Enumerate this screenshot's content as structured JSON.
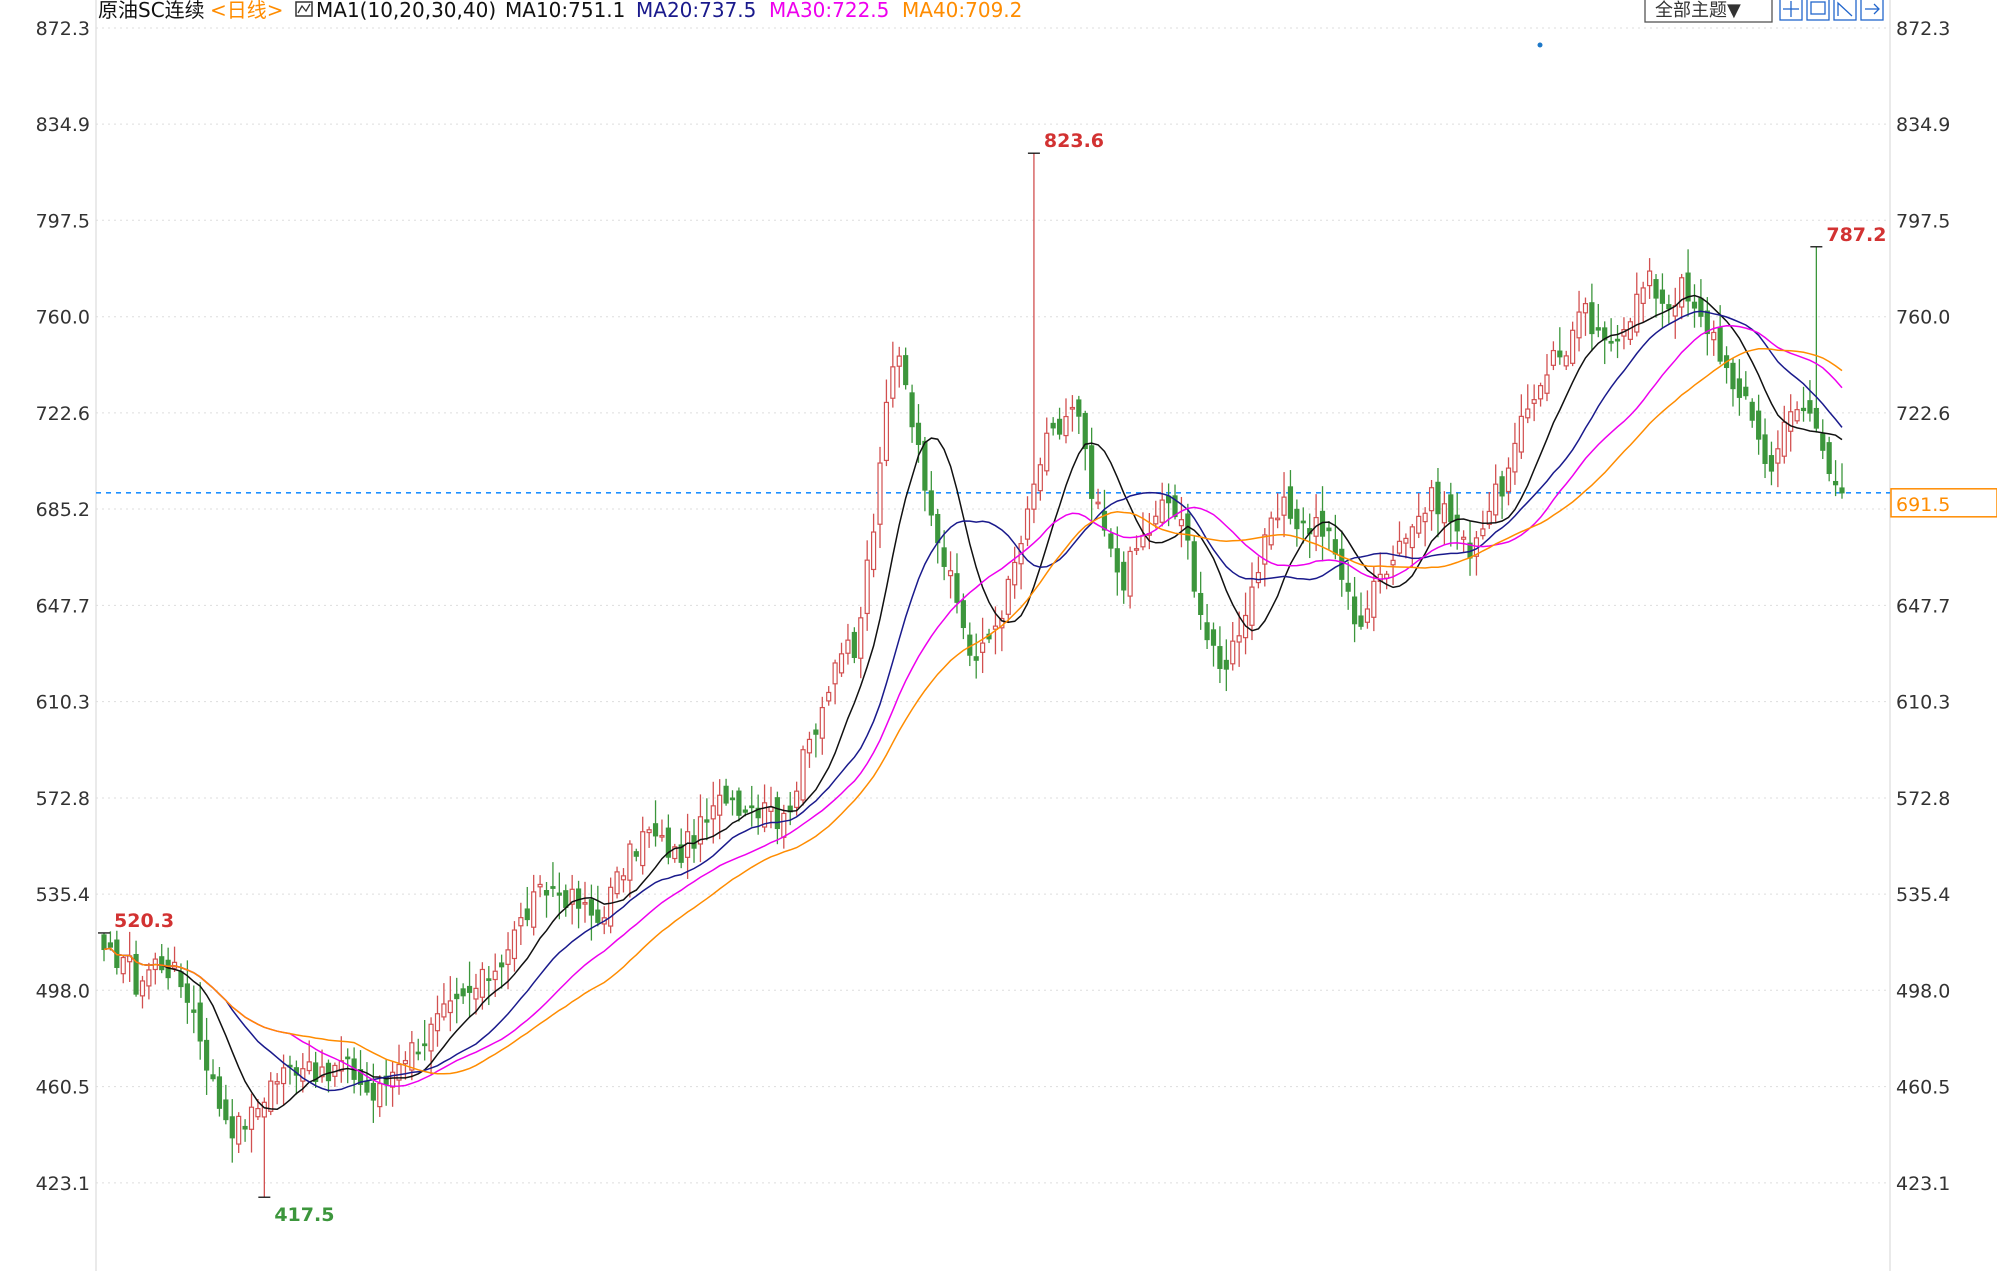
{
  "chart_data": {
    "type": "candlestick",
    "title": "原油SC连续",
    "period_label": "<日线>",
    "indicator_label": "MA1(10,20,30,40)",
    "theme_button": "全部主题▼",
    "ma_labels": {
      "ma10": "MA10:751.1",
      "ma20": "MA20:737.5",
      "ma30": "MA30:722.5",
      "ma40": "MA40:709.2"
    },
    "ylim": [
      404.7,
      872.3
    ],
    "yticks": [
      "872.3",
      "834.9",
      "797.5",
      "760.0",
      "722.6",
      "685.2",
      "647.7",
      "610.3",
      "572.8",
      "535.4",
      "498.0",
      "460.5",
      "423.1"
    ],
    "current_price": "691.5",
    "current_price_value": 691.5,
    "annotations": [
      {
        "text": "520.3",
        "value": 520.3,
        "index": 0,
        "kind": "high"
      },
      {
        "text": "417.5",
        "value": 417.5,
        "index": 25,
        "kind": "low"
      },
      {
        "text": "823.6",
        "value": 823.6,
        "index": 145,
        "kind": "high"
      },
      {
        "text": "787.2",
        "value": 787.2,
        "index": 267,
        "kind": "high"
      }
    ],
    "colors": {
      "up": "#d25050",
      "down": "#3c963c",
      "ma10": "#111111",
      "ma20": "#1a1a8c",
      "ma30": "#ee00ee",
      "ma40": "#ff8c00",
      "grid": "#dddddd",
      "price_line": "#1e90ff",
      "high_text": "#d23232",
      "low_text": "#3c963c",
      "legend_title": "#111111",
      "legend_period": "#ff8c00",
      "legend_ma10": "#111111",
      "legend_ma20": "#1a1a8c",
      "legend_ma30": "#ee00ee",
      "legend_ma40": "#ff8c00"
    },
    "candle_count": 272,
    "close_knots": [
      [
        0,
        510
      ],
      [
        4,
        512
      ],
      [
        6,
        500
      ],
      [
        10,
        510
      ],
      [
        13,
        505
      ],
      [
        16,
        495
      ],
      [
        18,
        480
      ],
      [
        21,
        456
      ],
      [
        24,
        445
      ],
      [
        25,
        445
      ],
      [
        28,
        450
      ],
      [
        31,
        462
      ],
      [
        35,
        468
      ],
      [
        38,
        472
      ],
      [
        41,
        462
      ],
      [
        44,
        470
      ],
      [
        47,
        465
      ],
      [
        50,
        456
      ],
      [
        52,
        460
      ],
      [
        55,
        472
      ],
      [
        57,
        475
      ],
      [
        60,
        480
      ],
      [
        63,
        488
      ],
      [
        66,
        492
      ],
      [
        70,
        500
      ],
      [
        74,
        510
      ],
      [
        77,
        522
      ],
      [
        80,
        532
      ],
      [
        83,
        538
      ],
      [
        86,
        535
      ],
      [
        89,
        530
      ],
      [
        92,
        525
      ],
      [
        95,
        538
      ],
      [
        98,
        550
      ],
      [
        101,
        560
      ],
      [
        104,
        555
      ],
      [
        107,
        550
      ],
      [
        110,
        558
      ],
      [
        113,
        565
      ],
      [
        116,
        575
      ],
      [
        119,
        570
      ],
      [
        122,
        570
      ],
      [
        124,
        575
      ],
      [
        126,
        560
      ],
      [
        128,
        572
      ],
      [
        130,
        585
      ],
      [
        132,
        598
      ],
      [
        134,
        610
      ],
      [
        136,
        625
      ],
      [
        138,
        632
      ],
      [
        140,
        625
      ],
      [
        142,
        660
      ],
      [
        144,
        685
      ],
      [
        146,
        728
      ],
      [
        148,
        750
      ],
      [
        150,
        730
      ],
      [
        152,
        705
      ],
      [
        154,
        690
      ],
      [
        156,
        670
      ],
      [
        158,
        655
      ],
      [
        160,
        642
      ],
      [
        162,
        625
      ],
      [
        164,
        630
      ],
      [
        166,
        640
      ],
      [
        168,
        650
      ],
      [
        170,
        665
      ],
      [
        172,
        680
      ],
      [
        174,
        700
      ],
      [
        176,
        712
      ],
      [
        178,
        715
      ],
      [
        180,
        725
      ],
      [
        182,
        718
      ],
      [
        184,
        690
      ],
      [
        186,
        680
      ],
      [
        188,
        665
      ],
      [
        190,
        658
      ],
      [
        192,
        668
      ],
      [
        194,
        675
      ],
      [
        196,
        680
      ],
      [
        198,
        690
      ],
      [
        200,
        682
      ],
      [
        202,
        672
      ],
      [
        204,
        650
      ],
      [
        206,
        632
      ],
      [
        208,
        622
      ],
      [
        210,
        630
      ],
      [
        212,
        642
      ],
      [
        214,
        655
      ],
      [
        216,
        668
      ],
      [
        218,
        680
      ],
      [
        220,
        685
      ],
      [
        222,
        682
      ],
      [
        224,
        678
      ],
      [
        226,
        680
      ],
      [
        228,
        675
      ],
      [
        230,
        665
      ],
      [
        232,
        650
      ],
      [
        234,
        640
      ],
      [
        236,
        650
      ],
      [
        238,
        660
      ],
      [
        240,
        668
      ],
      [
        242,
        675
      ],
      [
        244,
        680
      ],
      [
        246,
        685
      ],
      [
        248,
        690
      ],
      [
        250,
        685
      ],
      [
        252,
        678
      ],
      [
        254,
        668
      ],
      [
        256,
        676
      ],
      [
        258,
        685
      ],
      [
        260,
        692
      ],
      [
        262,
        700
      ],
      [
        264,
        715
      ],
      [
        266,
        728
      ],
      [
        268,
        736
      ],
      [
        270,
        745
      ],
      [
        272,
        745
      ],
      [
        274,
        755
      ],
      [
        276,
        762
      ],
      [
        278,
        752
      ],
      [
        280,
        748
      ],
      [
        282,
        755
      ],
      [
        284,
        760
      ],
      [
        286,
        768
      ],
      [
        288,
        774
      ],
      [
        290,
        768
      ],
      [
        292,
        765
      ],
      [
        294,
        772
      ],
      [
        296,
        762
      ],
      [
        298,
        758
      ],
      [
        300,
        754
      ],
      [
        302,
        743
      ],
      [
        304,
        725
      ],
      [
        306,
        732
      ],
      [
        308,
        716
      ],
      [
        310,
        700
      ],
      [
        312,
        710
      ],
      [
        314,
        720
      ],
      [
        316,
        725
      ],
      [
        318,
        722
      ],
      [
        320,
        716
      ],
      [
        322,
        700
      ],
      [
        324,
        691
      ]
    ]
  },
  "toolbar": {
    "icons": [
      "crosshair-icon",
      "zoom-icon",
      "chart-style-icon",
      "export-icon"
    ]
  }
}
